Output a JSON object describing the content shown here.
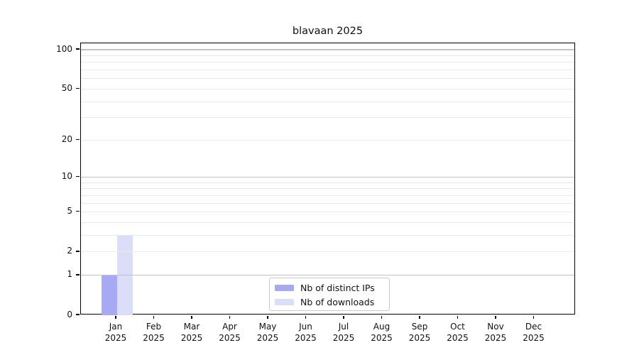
{
  "chart_data": {
    "type": "bar",
    "title": "blavaan 2025",
    "categories": [
      "Jan 2025",
      "Feb 2025",
      "Mar 2025",
      "Apr 2025",
      "May 2025",
      "Jun 2025",
      "Jul 2025",
      "Aug 2025",
      "Sep 2025",
      "Oct 2025",
      "Nov 2025",
      "Dec 2025"
    ],
    "series": [
      {
        "name": "Nb of distinct IPs",
        "color": "#a8a9f3",
        "values": [
          1,
          0,
          0,
          0,
          0,
          0,
          0,
          0,
          0,
          0,
          0,
          0
        ]
      },
      {
        "name": "Nb of downloads",
        "color": "#dcddf9",
        "values": [
          3,
          0,
          0,
          0,
          0,
          0,
          0,
          0,
          0,
          0,
          0,
          0
        ]
      }
    ],
    "xlabel": "",
    "ylabel": "",
    "yscale": "log1p",
    "ylim": [
      0,
      112
    ],
    "ytick_labels": [
      0,
      1,
      2,
      5,
      10,
      20,
      50,
      100
    ],
    "grid_major_lines": [
      1,
      10,
      100
    ],
    "grid_minor_lines": [
      2,
      3,
      4,
      5,
      6,
      7,
      8,
      9,
      20,
      30,
      40,
      50,
      60,
      70,
      80,
      90
    ],
    "grid": "on",
    "legend_position": "inside-bottom-center"
  },
  "colors": {
    "background": "#ffffff",
    "spine": "#000000",
    "grid_major": "#c2c2c2",
    "grid_minor": "#eaeaea",
    "text": "#111111",
    "legend_border": "#c9c9c9"
  }
}
